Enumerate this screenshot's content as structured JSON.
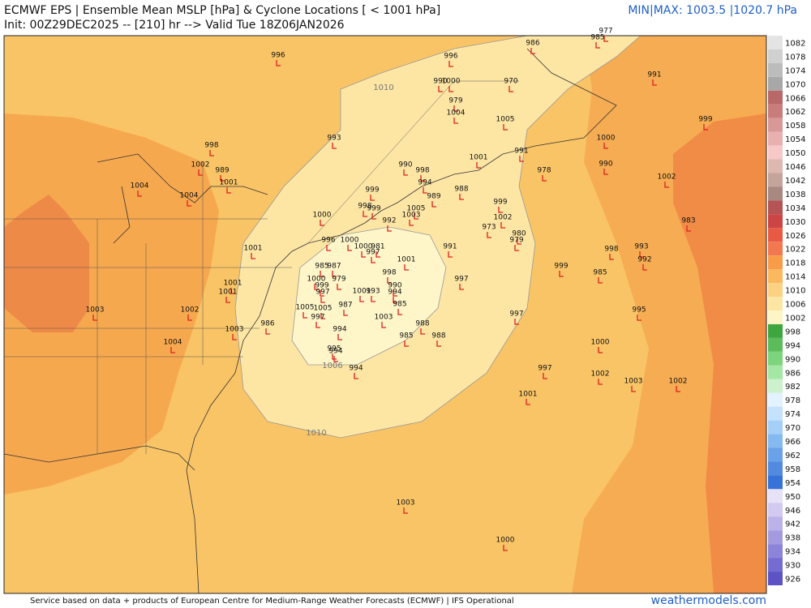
{
  "header": {
    "title": "ECMWF EPS | Ensemble Mean MSLP [hPa] & Cyclone Locations [ < 1001 hPa]",
    "subtitle": "Init: 00Z29DEC2025 -- [210] hr --> Valid Tue 18Z06JAN2026",
    "minmax": "MIN|MAX: 1003.5 |1020.7 hPa"
  },
  "footer": {
    "credit": "Service based on data + products of European Centre for Medium-Range Weather Forecasts (ECMWF) | IFS Operational",
    "site": "weathermodels.com"
  },
  "colorbar": {
    "labels": [
      1082,
      1078,
      1074,
      1070,
      1066,
      1062,
      1058,
      1054,
      1050,
      1046,
      1042,
      1038,
      1034,
      1030,
      1026,
      1022,
      1018,
      1014,
      1010,
      1006,
      1002,
      998,
      994,
      990,
      986,
      982,
      978,
      974,
      970,
      966,
      962,
      958,
      954,
      950,
      946,
      942,
      938,
      934,
      930,
      926
    ],
    "colors": [
      "#e4e4e4",
      "#d0d0d0",
      "#bcbcbc",
      "#a8a8a8",
      "#b86868",
      "#c87c7c",
      "#d89898",
      "#e8b0b0",
      "#f6c8c8",
      "#dcb8b0",
      "#c4a49c",
      "#a88880",
      "#b45454",
      "#cc4444",
      "#e85a44",
      "#f27850",
      "#f89c4a",
      "#fbb85e",
      "#fcd184",
      "#fde6a4",
      "#fef5c6",
      "#3ea63e",
      "#5cbc5c",
      "#7cd47c",
      "#a4e6a4",
      "#cdf0cd",
      "#e2f2ff",
      "#c4e2fc",
      "#a4d0f8",
      "#84baf0",
      "#6aa2e8",
      "#528ae0",
      "#3672d8",
      "#e8e2f8",
      "#d2caf0",
      "#bab2e8",
      "#a49ae0",
      "#8c84d8",
      "#746cd0",
      "#5c54c4"
    ]
  },
  "contour_labels": [
    1010,
    1006,
    1010
  ],
  "cyclones": [
    996,
    977,
    985,
    986,
    996,
    990,
    1000,
    970,
    979,
    1004,
    1005,
    991,
    999,
    1000,
    993,
    998,
    1002,
    989,
    1001,
    1004,
    1004,
    1001,
    991,
    978,
    990,
    1002,
    990,
    998,
    994,
    989,
    988,
    999,
    998,
    999,
    1005,
    1003,
    992,
    1000,
    999,
    1002,
    973,
    980,
    979,
    983,
    1001,
    996,
    1000,
    1000,
    981,
    997,
    991,
    1001,
    985,
    987,
    998,
    1000,
    979,
    999,
    997,
    1001,
    993,
    990,
    994,
    997,
    999,
    985,
    998,
    993,
    992,
    1001,
    1001,
    987,
    985,
    1005,
    1005,
    997,
    1003,
    988,
    988,
    985,
    994,
    997,
    995,
    1003,
    1002,
    986,
    1003,
    1004,
    995,
    994,
    994,
    1000,
    997,
    1002,
    1003,
    1002,
    1001,
    1003,
    1000
  ]
}
